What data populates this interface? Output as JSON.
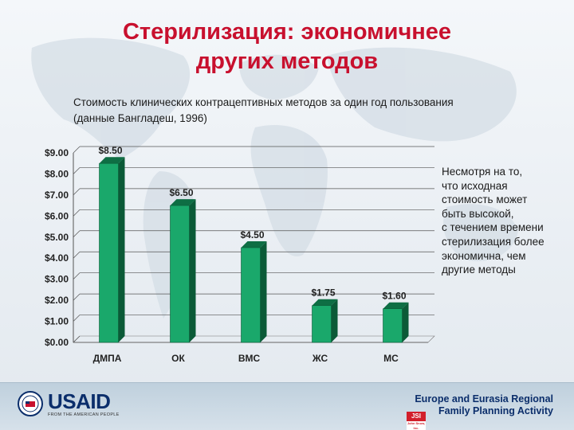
{
  "slide": {
    "title_line1": "Стерилизация: экономичнее",
    "title_line2": "других методов",
    "subtitle_line1": "Стоимость клинических контрацептивных методов за один год пользования",
    "subtitle_line2": "(данные Бангладеш, 1996)",
    "note": "Несмотря на то,\nчто исходная\nстоимость может\nбыть высокой,\nс течением времени\nстерилизация более\nэкономична, чем\nдругие методы"
  },
  "chart_data": {
    "type": "bar",
    "categories": [
      "ДМПА",
      "ОК",
      "ВМС",
      "ЖС",
      "МС"
    ],
    "values": [
      8.5,
      6.5,
      4.5,
      1.75,
      1.6
    ],
    "data_labels": [
      "$8.50",
      "$6.50",
      "$4.50",
      "$1.75",
      "$1.60"
    ],
    "yticks": [
      "$0.00",
      "$1.00",
      "$2.00",
      "$3.00",
      "$4.00",
      "$5.00",
      "$6.00",
      "$7.00",
      "$8.00",
      "$9.00"
    ],
    "ylim": [
      0,
      9
    ],
    "grid": true,
    "bar_color": "#1aa86b",
    "bar_top_color": "#0e6e44",
    "bar_side_color": "#0b5a37"
  },
  "footer": {
    "usaid": "USAID",
    "usaid_tagline": "FROM THE AMERICAN PEOPLE",
    "region_line1": "Europe and Eurasia Regional",
    "region_line2": "Family Planning Activity",
    "jsi": "JSI",
    "jsi_sub": "John Snow, Inc.",
    "colors": {
      "title": "#c8102e",
      "usaid_blue": "#0b2e6b",
      "jsi_red": "#d21f2b"
    }
  }
}
